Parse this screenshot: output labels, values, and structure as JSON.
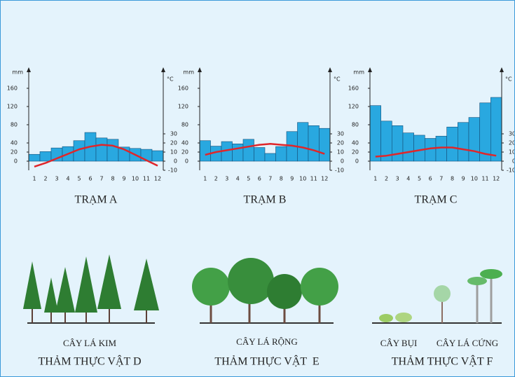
{
  "chart_data": [
    {
      "type": "bar_line",
      "title": "TRẠM A",
      "categories": [
        "1",
        "2",
        "3",
        "4",
        "5",
        "6",
        "7",
        "8",
        "9",
        "10",
        "11",
        "12"
      ],
      "ylabel": "mm",
      "y2label": "°C",
      "ylim": [
        -20,
        180
      ],
      "yticks": [
        0,
        20,
        40,
        80,
        120,
        160
      ],
      "y2lim": [
        -10,
        90
      ],
      "y2ticks": [
        -10,
        0,
        10,
        20,
        30
      ],
      "series": [
        {
          "type": "bar",
          "color": "#29a8e0",
          "values": [
            15,
            21,
            29,
            32,
            45,
            63,
            51,
            48,
            31,
            28,
            26,
            23
          ]
        },
        {
          "type": "line",
          "axis": "y2",
          "color": "#e0262a",
          "values": [
            -6,
            -2,
            3,
            8,
            13,
            16,
            18,
            17,
            13,
            7,
            1,
            -5
          ]
        }
      ]
    },
    {
      "type": "bar_line",
      "title": "TRẠM B",
      "categories": [
        "1",
        "2",
        "3",
        "4",
        "5",
        "6",
        "7",
        "8",
        "9",
        "10",
        "11",
        "12"
      ],
      "ylabel": "mm",
      "y2label": "°C",
      "ylim": [
        -20,
        180
      ],
      "yticks": [
        0,
        20,
        40,
        80,
        120,
        160
      ],
      "y2lim": [
        -10,
        90
      ],
      "y2ticks": [
        -10,
        0,
        10,
        20,
        30
      ],
      "series": [
        {
          "type": "bar",
          "color": "#29a8e0",
          "values": [
            45,
            33,
            43,
            38,
            48,
            30,
            17,
            32,
            65,
            85,
            78,
            72
          ]
        },
        {
          "type": "line",
          "axis": "y2",
          "color": "#e0262a",
          "values": [
            7,
            10,
            12,
            14,
            16,
            18,
            19,
            18,
            17,
            15,
            12,
            8
          ]
        }
      ]
    },
    {
      "type": "bar_line",
      "title": "TRẠM C",
      "categories": [
        "1",
        "2",
        "3",
        "4",
        "5",
        "6",
        "7",
        "8",
        "9",
        "10",
        "11",
        "12"
      ],
      "ylabel": "mm",
      "y2label": "°C",
      "ylim": [
        -20,
        180
      ],
      "yticks": [
        0,
        20,
        40,
        80,
        120,
        160
      ],
      "y2lim": [
        -10,
        90
      ],
      "y2ticks": [
        -10,
        0,
        10,
        20,
        30
      ],
      "series": [
        {
          "type": "bar",
          "color": "#29a8e0",
          "values": [
            122,
            88,
            78,
            62,
            57,
            50,
            55,
            75,
            85,
            96,
            128,
            140
          ]
        },
        {
          "type": "line",
          "axis": "y2",
          "color": "#e0262a",
          "values": [
            5,
            6,
            8,
            10,
            12,
            14,
            15,
            15,
            13,
            11,
            8,
            6
          ]
        }
      ]
    }
  ],
  "vegetation": [
    {
      "captions": [
        "CÂY LÁ KIM"
      ],
      "title": "THẢM THỰC VẬT D"
    },
    {
      "captions": [
        "CÂY LÁ RỘNG"
      ],
      "title": "THẢM THỰC VẬT  E"
    },
    {
      "captions": [
        "CÂY BỤI",
        "CÂY LÁ CỨNG"
      ],
      "title": "THẢM THỰC VẬT F"
    }
  ]
}
